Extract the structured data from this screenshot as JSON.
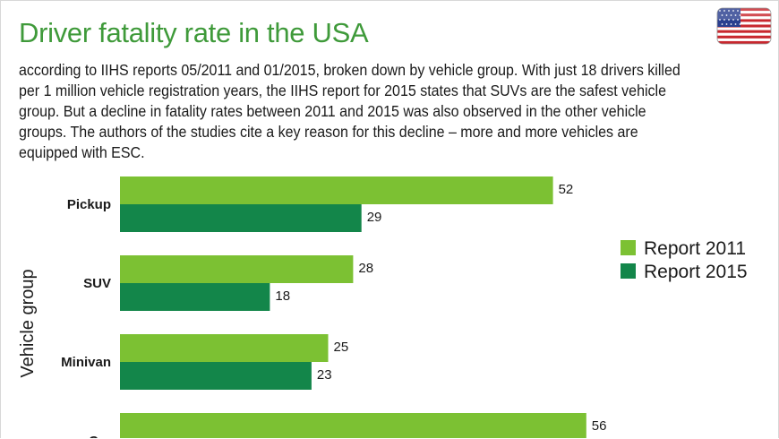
{
  "header": {
    "title": "Driver fatality rate in the USA",
    "description": "according to IIHS reports 05/2011 and 01/2015, broken down by vehicle group. With just 18 drivers killed per 1 million vehicle registration years, the IIHS report for 2015 states that SUVs are the safest vehicle group. But a decline in fatality rates between 2011 and 2015 was also observed in the other vehicle groups. The authors of the studies cite a key reason for this decline – more and more vehicles are equipped with ESC.",
    "flag_icon": "usa-flag-icon"
  },
  "colors": {
    "title": "#3f9a3a",
    "report_2011": "#7cc133",
    "report_2015": "#13864a",
    "flag_red": "#c8272e",
    "flag_blue": "#2a3f8f"
  },
  "chart_data": {
    "type": "bar",
    "orientation": "horizontal",
    "ylabel": "Vehicle group",
    "categories": [
      "Pickup",
      "SUV",
      "Minivan",
      "Car"
    ],
    "series": [
      {
        "name": "Report 2011",
        "values": [
          52,
          28,
          25,
          56
        ]
      },
      {
        "name": "Report 2015",
        "values": [
          29,
          18,
          23,
          null
        ]
      }
    ],
    "legend_position": "right"
  }
}
